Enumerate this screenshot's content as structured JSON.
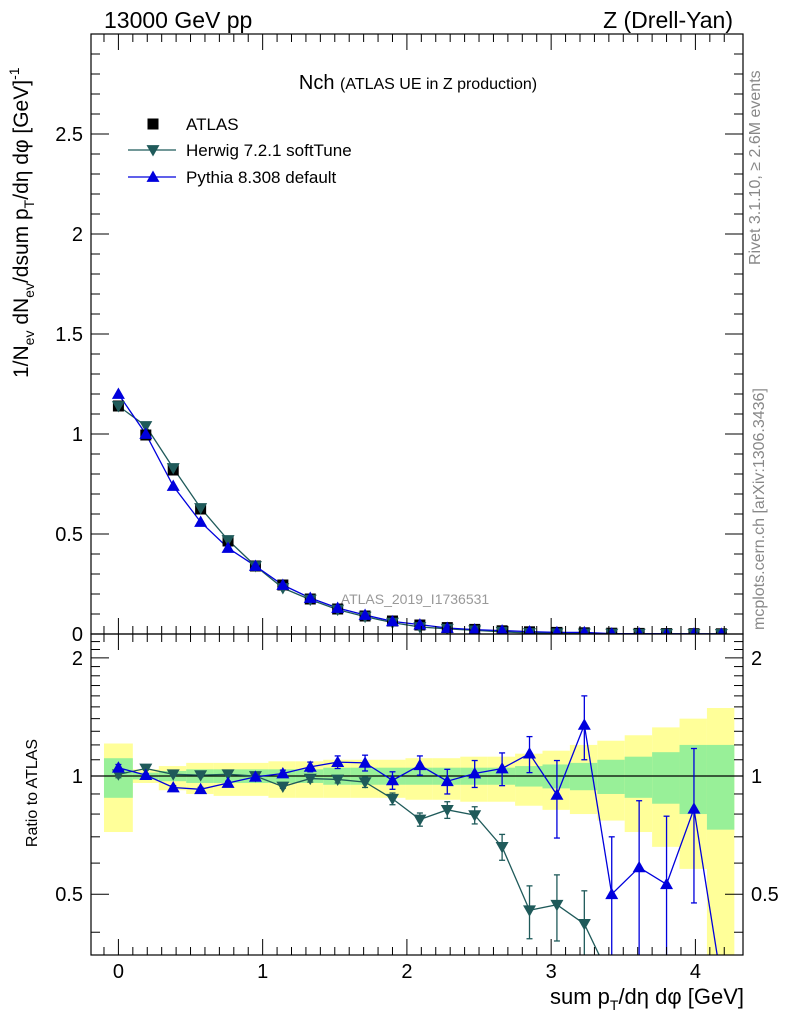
{
  "header": {
    "left": "13000 GeV pp",
    "right": "Z (Drell-Yan)"
  },
  "plot": {
    "title_main": "Nch",
    "title_sub": "(ATLAS UE in Z production)",
    "watermark": "ATLAS_2019_I1736531"
  },
  "side_labels": {
    "rivet": "Rivet 3.1.10, ≥ 2.6M events",
    "mcplots": "mcplots.cern.ch [arXiv:1306.3436]"
  },
  "axis_text": {
    "ylabel_main": "1/N",
    "ylabel_main_sub": "ev",
    "ylabel_main_2": " dN",
    "ylabel_main_2_sub": "ev",
    "ylabel_main_3": "/dsum p",
    "ylabel_main_3_sub": "T",
    "ylabel_main_4": "/dη dφ  [GeV]",
    "ylabel_main_sup": "-1",
    "ylabel_ratio": "Ratio to ATLAS",
    "xlabel": "sum p",
    "xlabel_sub": "T",
    "xlabel_2": "/dη dφ [GeV]"
  },
  "legend": [
    {
      "name": "ATLAS",
      "marker": "square",
      "color": "#000000"
    },
    {
      "name": "Herwig 7.2.1 softTune",
      "marker": "triangle-down",
      "color": "#1f5a5a"
    },
    {
      "name": "Pythia 8.308 default",
      "marker": "triangle-up",
      "color": "#0000dd"
    }
  ],
  "colors": {
    "atlas": "#000000",
    "herwig": "#1f5a5a",
    "pythia": "#0000dd",
    "band_inner": "#98f098",
    "band_outer": "#ffff99"
  },
  "chart_data": [
    {
      "type": "scatter",
      "panel": "main",
      "xlim": [
        -0.19,
        4.33
      ],
      "ylim": [
        0,
        3.0
      ],
      "yticks": [
        0,
        0.5,
        1,
        1.5,
        2,
        2.5
      ],
      "ytick_labels": [
        "0",
        "0.5",
        "1",
        "1.5",
        "2",
        "2.5"
      ],
      "x": [
        0.0,
        0.19,
        0.38,
        0.57,
        0.76,
        0.95,
        1.14,
        1.33,
        1.52,
        1.71,
        1.9,
        2.09,
        2.28,
        2.47,
        2.66,
        2.85,
        3.04,
        3.23,
        3.42,
        3.61,
        3.8,
        3.99,
        4.18
      ],
      "series": [
        {
          "name": "ATLAS",
          "values": [
            1.14,
            0.995,
            0.82,
            0.625,
            0.465,
            0.34,
            0.245,
            0.175,
            0.125,
            0.09,
            0.065,
            0.045,
            0.032,
            0.023,
            0.016,
            0.011,
            0.008,
            0.006,
            0.004,
            0.003,
            0.002,
            0.0015,
            0.001
          ]
        },
        {
          "name": "Herwig 7.2.1 softTune",
          "values": [
            1.14,
            1.04,
            0.83,
            0.63,
            0.47,
            0.34,
            0.23,
            0.172,
            0.122,
            0.087,
            0.057,
            0.035,
            0.026,
            0.018,
            0.011,
            0.005,
            0.004,
            0.0024,
            0.002,
            0.0015,
            0.001,
            0.0008,
            0.0005
          ]
        },
        {
          "name": "Pythia 8.308 default",
          "values": [
            1.2,
            1.0,
            0.74,
            0.56,
            0.43,
            0.34,
            0.245,
            0.18,
            0.13,
            0.095,
            0.063,
            0.047,
            0.03,
            0.022,
            0.017,
            0.012,
            0.008,
            0.008,
            0.002,
            0.0017,
            0.001,
            0.0012,
            0.0008
          ]
        }
      ]
    },
    {
      "type": "scatter",
      "panel": "ratio",
      "xlim": [
        -0.19,
        4.33
      ],
      "ylim": [
        0.35,
        2.3
      ],
      "yticks": [
        0.5,
        1,
        2
      ],
      "ytick_labels": [
        "0.5",
        "1",
        "2"
      ],
      "xticks": [
        0,
        1,
        2,
        3,
        4
      ],
      "xtick_labels": [
        "0",
        "1",
        "2",
        "3",
        "4"
      ],
      "bands": {
        "edges": [
          -0.1,
          0.1,
          0.28,
          0.47,
          0.66,
          0.85,
          1.04,
          1.23,
          1.42,
          1.61,
          1.8,
          1.99,
          2.18,
          2.37,
          2.56,
          2.75,
          2.94,
          3.13,
          3.32,
          3.51,
          3.7,
          3.89,
          4.08,
          4.27
        ],
        "inner": [
          [
            0.88,
            1.11
          ],
          [
            0.98,
            1.02
          ],
          [
            0.97,
            1.03
          ],
          [
            0.96,
            1.04
          ],
          [
            0.96,
            1.04
          ],
          [
            0.96,
            1.04
          ],
          [
            0.96,
            1.04
          ],
          [
            0.96,
            1.04
          ],
          [
            0.95,
            1.05
          ],
          [
            0.95,
            1.05
          ],
          [
            0.95,
            1.05
          ],
          [
            0.95,
            1.05
          ],
          [
            0.95,
            1.05
          ],
          [
            0.95,
            1.05
          ],
          [
            0.95,
            1.05
          ],
          [
            0.94,
            1.06
          ],
          [
            0.93,
            1.07
          ],
          [
            0.92,
            1.08
          ],
          [
            0.9,
            1.1
          ],
          [
            0.88,
            1.12
          ],
          [
            0.85,
            1.15
          ],
          [
            0.8,
            1.2
          ],
          [
            0.73,
            1.2
          ]
        ],
        "outer": [
          [
            0.72,
            1.21
          ],
          [
            0.96,
            1.04
          ],
          [
            0.92,
            1.06
          ],
          [
            0.9,
            1.08
          ],
          [
            0.89,
            1.08
          ],
          [
            0.89,
            1.08
          ],
          [
            0.88,
            1.09
          ],
          [
            0.88,
            1.09
          ],
          [
            0.88,
            1.1
          ],
          [
            0.88,
            1.1
          ],
          [
            0.88,
            1.1
          ],
          [
            0.87,
            1.11
          ],
          [
            0.87,
            1.11
          ],
          [
            0.86,
            1.12
          ],
          [
            0.86,
            1.12
          ],
          [
            0.84,
            1.14
          ],
          [
            0.82,
            1.16
          ],
          [
            0.8,
            1.2
          ],
          [
            0.77,
            1.23
          ],
          [
            0.72,
            1.27
          ],
          [
            0.66,
            1.33
          ],
          [
            0.58,
            1.4
          ],
          [
            0.34,
            1.49
          ]
        ]
      },
      "series": [
        {
          "name": "Herwig 7.2.1 softTune",
          "values": [
            1.01,
            1.045,
            1.01,
            1.005,
            1.01,
            1.0,
            0.94,
            0.985,
            0.98,
            0.965,
            0.875,
            0.775,
            0.82,
            0.795,
            0.66,
            0.455,
            0.47,
            0.42,
            null,
            null,
            null,
            null,
            null
          ],
          "err": [
            0.02,
            0.01,
            0.01,
            0.01,
            0.01,
            0.01,
            0.01,
            0.02,
            0.02,
            0.03,
            0.03,
            0.03,
            0.04,
            0.04,
            0.05,
            0.07,
            0.09,
            0.09,
            0,
            0,
            0,
            0,
            0
          ]
        },
        {
          "name": "Pythia 8.308 default",
          "values": [
            1.05,
            1.005,
            0.935,
            0.925,
            0.96,
            0.995,
            1.015,
            1.055,
            1.085,
            1.08,
            0.975,
            1.065,
            0.97,
            1.015,
            1.045,
            1.14,
            0.895,
            1.35,
            0.5,
            0.585,
            0.53,
            0.825,
            null
          ],
          "err": [
            0.02,
            0.01,
            0.01,
            0.01,
            0.01,
            0.01,
            0.02,
            0.03,
            0.04,
            0.05,
            0.05,
            0.06,
            0.07,
            0.08,
            0.1,
            0.12,
            0.2,
            0.25,
            0.2,
            0.28,
            0.26,
            0.35,
            0
          ]
        }
      ]
    }
  ]
}
